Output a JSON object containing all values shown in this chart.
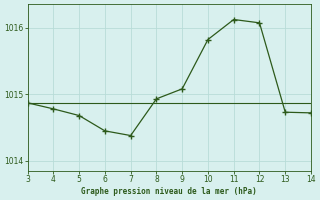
{
  "x_marked": [
    3,
    4,
    5,
    6,
    7,
    8,
    9,
    10,
    11,
    12,
    13,
    14
  ],
  "y_marked": [
    1014.87,
    1014.78,
    1014.68,
    1014.45,
    1014.38,
    1014.93,
    1015.08,
    1015.82,
    1016.12,
    1016.07,
    1014.73,
    1014.72
  ],
  "x_smooth": [
    3,
    4,
    5,
    6,
    7,
    8,
    9,
    10,
    11,
    12,
    13,
    14
  ],
  "y_smooth": [
    1014.87,
    1014.87,
    1014.87,
    1014.87,
    1014.87,
    1014.87,
    1014.87,
    1014.87,
    1014.87,
    1014.87,
    1014.87,
    1014.72
  ],
  "line_color": "#2d5a1b",
  "bg_color": "#d8f0ee",
  "grid_color": "#b8dcd8",
  "xlabel": "Graphe pression niveau de la mer (hPa)",
  "xlabel_color": "#2d5a1b",
  "xlim": [
    3,
    14
  ],
  "ylim": [
    1013.85,
    1016.35
  ],
  "yticks": [
    1014,
    1015,
    1016
  ],
  "xticks": [
    3,
    4,
    5,
    6,
    7,
    8,
    9,
    10,
    11,
    12,
    13,
    14
  ]
}
